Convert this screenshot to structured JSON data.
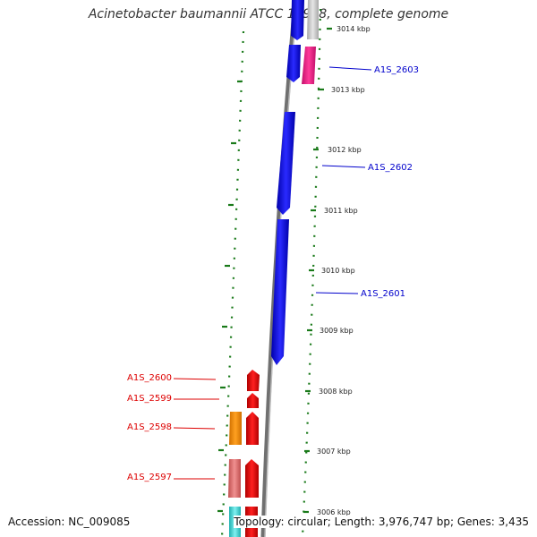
{
  "title": "Acinetobacter baumannii ATCC 17978, complete genome",
  "accession": "Accession: NC_009085",
  "topology": "Topology: circular; Length: 3,976,747 bp; Genes: 3,435",
  "ticks": [
    {
      "label": "3014 kbp"
    },
    {
      "label": "3013 kbp"
    },
    {
      "label": "3012 kbp"
    },
    {
      "label": "3011 kbp"
    },
    {
      "label": "3010 kbp"
    },
    {
      "label": "3009 kbp"
    },
    {
      "label": "3008 kbp"
    },
    {
      "label": "3007 kbp"
    },
    {
      "label": "3006 kbp"
    }
  ],
  "genes_forward": [
    {
      "label": "A1S_2603",
      "color": "#0000cc"
    },
    {
      "label": "A1S_2602",
      "color": "#0000cc"
    },
    {
      "label": "A1S_2601",
      "color": "#0000cc"
    }
  ],
  "genes_reverse": [
    {
      "label": "A1S_2600",
      "color": "#dd0000"
    },
    {
      "label": "A1S_2599",
      "color": "#dd0000"
    },
    {
      "label": "A1S_2598",
      "color": "#dd0000"
    },
    {
      "label": "A1S_2597",
      "color": "#dd0000"
    }
  ],
  "colors": {
    "forward_cds": "#1a1aee",
    "reverse_cds": "#ee1111",
    "pink_feature": "#ee2288",
    "orange_feature": "#ff9900",
    "salmon_feature": "#e87878",
    "cyan_feature": "#44dddd",
    "grey_feature": "#c8c8c8",
    "backbone": "#888888",
    "tick_marks": "#1a7a1a"
  }
}
